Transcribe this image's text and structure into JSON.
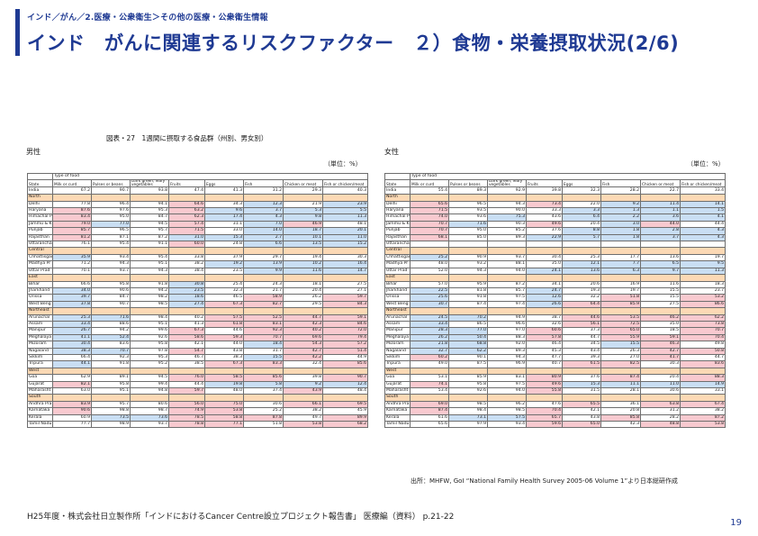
{
  "breadcrumb": "インド／がん／2.医療・公衆衛生＞その他の医療・公衆衛生情報",
  "title": "インド　がんに関連するリスクファクター　２）食物・栄養摂取状況(2/6)",
  "figure_title": "図表・27　1週間に摂取する食品群（州別、男女別）",
  "male_label": "男性",
  "female_label": "女性",
  "unit": "（単位：%）",
  "headers": {
    "type_of_food": "Type of food",
    "state": "State",
    "milk": "Milk or curd",
    "pulses": "Pulses or beans",
    "greens": "Dark green, leafy vegetables",
    "fruits": "Fruits",
    "eggs": "Eggs",
    "fish": "Fish",
    "chicken": "Chicken or meat",
    "fish_chicken": "Fish or chicken/meat"
  },
  "male_table": [
    {
      "r": "India",
      "v": [
        "67.2",
        "90.7",
        "93.8",
        "47.4",
        "41.3",
        "31.2",
        "29.3",
        "40.3"
      ],
      "top": true
    },
    {
      "r": "North",
      "region": true
    },
    {
      "r": "Delhi",
      "v": [
        "77.8",
        "96.4",
        "94.1",
        "64.6",
        "34.3",
        "12.3",
        "21.9",
        "23.9"
      ],
      "c": [
        "",
        "",
        "",
        "h",
        "",
        "l",
        "",
        "l"
      ]
    },
    {
      "r": "Haryana",
      "v": [
        "87.6",
        "97.6",
        "95.3",
        "63.2",
        "9.6",
        "3.7",
        "5.3",
        "5.5"
      ],
      "c": [
        "h",
        "",
        "",
        "h",
        "l",
        "l",
        "l",
        "l"
      ]
    },
    {
      "r": "Himachal P",
      "v": [
        "83.4",
        "95.0",
        "84.7",
        "62.3",
        "17.4",
        "4.3",
        "9.8",
        "11.3"
      ],
      "c": [
        "h",
        "",
        "",
        "h",
        "l",
        "l",
        "l",
        "l"
      ]
    },
    {
      "r": "Jammu & K",
      "v": [
        "79.0",
        "77.0",
        "94.5",
        "57.4",
        "31.1",
        "7.0",
        "46.9",
        "48.1"
      ],
      "c": [
        "h",
        "l",
        "",
        "h",
        "",
        "l",
        "h",
        ""
      ]
    },
    {
      "r": "Punjab",
      "v": [
        "85.7",
        "96.5",
        "95.7",
        "71.5",
        "33.0",
        "14.0",
        "18.7",
        "20.1"
      ],
      "c": [
        "h",
        "",
        "",
        "h",
        "",
        "l",
        "l",
        "l"
      ]
    },
    {
      "r": "Rajasthan",
      "v": [
        "81.2",
        "87.1",
        "87.2",
        "31.0",
        "15.3",
        "2.7",
        "10.1",
        "11.0"
      ],
      "c": [
        "h",
        "",
        "",
        "l",
        "l",
        "l",
        "l",
        "l"
      ]
    },
    {
      "r": "Uttaranchal",
      "v": [
        "76.1",
        "95.4",
        "91.1",
        "60.0",
        "24.8",
        "6.6",
        "13.5",
        "15.2"
      ],
      "c": [
        "",
        "",
        "",
        "h",
        "",
        "l",
        "l",
        "l"
      ]
    },
    {
      "r": "Central",
      "region": true
    },
    {
      "r": "Chhattisgarh",
      "v": [
        "35.9",
        "93.4",
        "95.4",
        "33.8",
        "37.9",
        "29.7",
        "19.4",
        "30.3"
      ],
      "c": [
        "l",
        "",
        "",
        "",
        "",
        "",
        "",
        ""
      ]
    },
    {
      "r": "Madhya Pr",
      "v": [
        "71.2",
        "94.3",
        "95.1",
        "38.2",
        "19.2",
        "13.9",
        "10.2",
        "16.4"
      ],
      "c": [
        "",
        "",
        "",
        "",
        "l",
        "l",
        "l",
        "l"
      ]
    },
    {
      "r": "Uttar Prad",
      "v": [
        "70.1",
        "93.7",
        "94.3",
        "38.4",
        "23.5",
        "9.9",
        "11.6",
        "14.7"
      ],
      "c": [
        "",
        "",
        "",
        "",
        "",
        "l",
        "l",
        "l"
      ]
    },
    {
      "r": "East",
      "region": true
    },
    {
      "r": "Bihar",
      "v": [
        "66.6",
        "95.8",
        "91.8",
        "30.8",
        "25.4",
        "24.3",
        "18.1",
        "27.5"
      ],
      "c": [
        "",
        "",
        "",
        "l",
        "",
        "",
        "",
        ""
      ]
    },
    {
      "r": "Jharkhand",
      "v": [
        "34.0",
        "90.6",
        "94.2",
        "23.5",
        "32.3",
        "21.7",
        "20.4",
        "27.1"
      ],
      "c": [
        "l",
        "",
        "",
        "l",
        "",
        "",
        "",
        ""
      ]
    },
    {
      "r": "Orissa",
      "v": [
        "39.7",
        "84.7",
        "98.2",
        "18.6",
        "46.5",
        "58.9",
        "26.2",
        "59.7"
      ],
      "c": [
        "l",
        "",
        "",
        "l",
        "",
        "h",
        "",
        "h"
      ]
    },
    {
      "r": "West Beng",
      "v": [
        "37.8",
        "90.7",
        "98.5",
        "27.4",
        "67.3",
        "82.7",
        "29.5",
        "84.3"
      ],
      "c": [
        "l",
        "",
        "",
        "l",
        "h",
        "h",
        "",
        "h"
      ]
    },
    {
      "r": "Northeast",
      "region": true
    },
    {
      "r": "Arunachal",
      "v": [
        "25.3",
        "71.6",
        "98.4",
        "40.2",
        "57.5",
        "52.5",
        "44.7",
        "59.1"
      ],
      "c": [
        "l",
        "l",
        "",
        "",
        "h",
        "h",
        "h",
        "h"
      ]
    },
    {
      "r": "Assam",
      "v": [
        "33.4",
        "88.6",
        "95.1",
        "41.3",
        "61.8",
        "83.1",
        "42.3",
        "84.6"
      ],
      "c": [
        "l",
        "",
        "",
        "",
        "h",
        "h",
        "h",
        "h"
      ]
    },
    {
      "r": "Manipur",
      "v": [
        "26.7",
        "94.2",
        "99.6",
        "67.3",
        "44.6",
        "92.3",
        "40.2",
        "72.0"
      ],
      "c": [
        "l",
        "",
        "",
        "h",
        "",
        "h",
        "h",
        "h"
      ]
    },
    {
      "r": "Meghalaya",
      "v": [
        "41.1",
        "52.4",
        "92.6",
        "58.6",
        "59.3",
        "70.7",
        "69.6",
        "79.4"
      ],
      "c": [
        "l",
        "l",
        "",
        "h",
        "h",
        "h",
        "h",
        "h"
      ]
    },
    {
      "r": "Mizoram",
      "v": [
        "30.4",
        "83.6",
        "95.8",
        "42.1",
        "44.0",
        "18.4",
        "54.3",
        "57.2"
      ],
      "c": [
        "l",
        "",
        "",
        "",
        "",
        "l",
        "h",
        "h"
      ]
    },
    {
      "r": "Nagaland",
      "v": [
        "38.3",
        "70.7",
        "97.8",
        "54.7",
        "43.8",
        "31.7",
        "42.7",
        "51.4"
      ],
      "c": [
        "l",
        "l",
        "",
        "h",
        "",
        "",
        "h",
        "h"
      ]
    },
    {
      "r": "Sikkim",
      "v": [
        "66.4",
        "92.3",
        "95.3",
        "46.7",
        "38.3",
        "15.5",
        "42.2",
        "44.9"
      ],
      "c": [
        "",
        "",
        "",
        "",
        "",
        "l",
        "h",
        ""
      ]
    },
    {
      "r": "Tripura",
      "v": [
        "44.1",
        "91.8",
        "95.2",
        "38.5",
        "67.3",
        "83.3",
        "32.4",
        "85.6"
      ],
      "c": [
        "l",
        "",
        "",
        "",
        "h",
        "h",
        "",
        "h"
      ]
    },
    {
      "r": "West",
      "region": true
    },
    {
      "r": "Goa",
      "v": [
        "62.9",
        "89.1",
        "94.5",
        "76.0",
        "58.5",
        "85.6",
        "39.8",
        "90.7"
      ],
      "c": [
        "",
        "",
        "",
        "h",
        "h",
        "h",
        "",
        "h"
      ]
    },
    {
      "r": "Gujarat",
      "v": [
        "82.1",
        "95.8",
        "99.4",
        "44.4",
        "19.8",
        "5.8",
        "9.2",
        "12.4"
      ],
      "c": [
        "h",
        "",
        "",
        "",
        "l",
        "l",
        "l",
        "l"
      ]
    },
    {
      "r": "Maharasht",
      "v": [
        "63.0",
        "95.1",
        "94.8",
        "59.7",
        "48.0",
        "37.4",
        "43.9",
        "48.4"
      ],
      "c": [
        "",
        "",
        "",
        "h",
        "",
        "",
        "h",
        ""
      ]
    },
    {
      "r": "South",
      "region": true
    },
    {
      "r": "Andhra Pra",
      "v": [
        "83.9",
        "95.7",
        "80.6",
        "56.0",
        "75.0",
        "30.6",
        "66.1",
        "69.5"
      ],
      "c": [
        "h",
        "",
        "",
        "h",
        "h",
        "",
        "h",
        "h"
      ]
    },
    {
      "r": "Karnataka",
      "v": [
        "90.6",
        "98.8",
        "98.7",
        "74.9",
        "53.8",
        "25.2",
        "38.2",
        "45.9"
      ],
      "c": [
        "h",
        "",
        "",
        "h",
        "h",
        "",
        "",
        ""
      ]
    },
    {
      "r": "Kerala",
      "v": [
        "60.9",
        "73.5",
        "73.6",
        "78.5",
        "58.8",
        "87.8",
        "49.7",
        "89.9"
      ],
      "c": [
        "",
        "l",
        "l",
        "h",
        "h",
        "h",
        "",
        "h"
      ]
    },
    {
      "r": "Tamil Nadu",
      "v": [
        "77.7",
        "98.9",
        "93.7",
        "78.8",
        "77.1",
        "51.8",
        "53.8",
        "68.2"
      ],
      "c": [
        "",
        "",
        "",
        "h",
        "h",
        "",
        "h",
        "h"
      ]
    }
  ],
  "female_table": [
    {
      "r": "India",
      "v": [
        "55.4",
        "89.3",
        "92.9",
        "39.8",
        "32.3",
        "28.2",
        "22.7",
        "33.4"
      ],
      "top": true
    },
    {
      "r": "North",
      "region": true
    },
    {
      "r": "Delhi",
      "v": [
        "65.6",
        "96.5",
        "94.3",
        "73.4",
        "22.0",
        "9.2",
        "11.4",
        "14.1"
      ],
      "c": [
        "h",
        "",
        "",
        "h",
        "",
        "l",
        "l",
        "l"
      ]
    },
    {
      "r": "Haryana",
      "v": [
        "71.5",
        "93.5",
        "90.0",
        "33.3",
        "3.3",
        "1.3",
        "1.1",
        "1.5"
      ],
      "c": [
        "h",
        "",
        "",
        "",
        "l",
        "l",
        "l",
        "l"
      ]
    },
    {
      "r": "Himachal P",
      "v": [
        "74.0",
        "93.6",
        "75.3",
        "43.6",
        "6.4",
        "2.2",
        "3.6",
        "4.1"
      ],
      "c": [
        "h",
        "",
        "l",
        "",
        "l",
        "l",
        "l",
        "l"
      ]
    },
    {
      "r": "Jammu & K",
      "v": [
        "70.7",
        "71.6",
        "90.3",
        "49.6",
        "20.4",
        "3.0",
        "44.0",
        "44.4"
      ],
      "c": [
        "h",
        "l",
        "",
        "h",
        "",
        "l",
        "h",
        ""
      ]
    },
    {
      "r": "Punjab",
      "v": [
        "70.7",
        "95.0",
        "85.2",
        "37.6",
        "8.8",
        "1.8",
        "2.8",
        "4.3"
      ],
      "c": [
        "h",
        "",
        "",
        "",
        "l",
        "l",
        "l",
        "l"
      ]
    },
    {
      "r": "Rajasthan",
      "v": [
        "68.1",
        "85.0",
        "89.3",
        "22.9",
        "5.7",
        "1.8",
        "3.7",
        "4.3"
      ],
      "c": [
        "h",
        "",
        "",
        "l",
        "l",
        "l",
        "l",
        "l"
      ]
    },
    {
      "r": "Uttaranchal",
      "v": [
        "",
        "",
        "",
        "",
        "",
        "",
        "",
        ""
      ]
    },
    {
      "r": "Central",
      "region": true
    },
    {
      "r": "Chhattisgarh",
      "v": [
        "25.2",
        "90.9",
        "93.7",
        "30.4",
        "25.3",
        "17.7",
        "13.6",
        "19.7"
      ],
      "c": [
        "l",
        "",
        "",
        "",
        "",
        "",
        "",
        ""
      ]
    },
    {
      "r": "Madhya Pr",
      "v": [
        "48.0",
        "93.2",
        "88.1",
        "35.0",
        "12.1",
        "7.7",
        "6.5",
        "9.5"
      ],
      "c": [
        "",
        "",
        "",
        "",
        "l",
        "l",
        "l",
        "l"
      ]
    },
    {
      "r": "Uttar Prad",
      "v": [
        "52.0",
        "94.3",
        "94.0",
        "24.1",
        "13.6",
        "6.3",
        "9.7",
        "11.3"
      ],
      "c": [
        "",
        "",
        "",
        "l",
        "l",
        "l",
        "l",
        "l"
      ]
    },
    {
      "r": "East",
      "region": true
    },
    {
      "r": "Bihar",
      "v": [
        "57.0",
        "95.9",
        "87.2",
        "34.1",
        "20.6",
        "16.9",
        "11.6",
        "18.3"
      ],
      "c": [
        "",
        "",
        "",
        "",
        "",
        "",
        "",
        ""
      ]
    },
    {
      "r": "Jharkhand",
      "v": [
        "22.5",
        "81.8",
        "85.7",
        "24.7",
        "19.3",
        "19.7",
        "15.5",
        "23.7"
      ],
      "c": [
        "l",
        "",
        "",
        "l",
        "",
        "",
        "",
        ""
      ]
    },
    {
      "r": "Orissa",
      "v": [
        "25.6",
        "91.8",
        "97.5",
        "12.6",
        "32.2",
        "51.8",
        "15.5",
        "53.2"
      ],
      "c": [
        "l",
        "",
        "",
        "l",
        "",
        "h",
        "",
        "h"
      ]
    },
    {
      "r": "West Beng",
      "v": [
        "30.7",
        "87.4",
        "97.4",
        "26.6",
        "64.4",
        "85.9",
        "27.5",
        "86.6"
      ],
      "c": [
        "l",
        "",
        "",
        "l",
        "h",
        "h",
        "",
        "h"
      ]
    },
    {
      "r": "Northeast",
      "region": true
    },
    {
      "r": "Arunachal",
      "v": [
        "24.5",
        "70.2",
        "94.9",
        "38.7",
        "44.6",
        "53.5",
        "46.2",
        "62.2"
      ],
      "c": [
        "l",
        "l",
        "",
        "",
        "h",
        "h",
        "h",
        "h"
      ]
    },
    {
      "r": "Assam",
      "v": [
        "33.4",
        "86.5",
        "96.6",
        "32.6",
        "56.1",
        "72.5",
        "35.0",
        "73.8"
      ],
      "c": [
        "l",
        "",
        "",
        "",
        "h",
        "h",
        "",
        "h"
      ]
    },
    {
      "r": "Manipur",
      "v": [
        "28.3",
        "77.0",
        "97.0",
        "60.6",
        "37.3",
        "65.0",
        "18.5",
        "70.7"
      ],
      "c": [
        "l",
        "l",
        "",
        "h",
        "",
        "h",
        "",
        "h"
      ]
    },
    {
      "r": "Meghalaya",
      "v": [
        "26.2",
        "50.4",
        "88.3",
        "57.8",
        "44.7",
        "55.9",
        "59.1",
        "70.4"
      ],
      "c": [
        "l",
        "l",
        "",
        "h",
        "",
        "h",
        "h",
        "h"
      ]
    },
    {
      "r": "Mizoram",
      "v": [
        "21.8",
        "68.8",
        "92.0",
        "46.4",
        "34.5",
        "15.5",
        "46.3",
        "49.8"
      ],
      "c": [
        "l",
        "l",
        "",
        "",
        "",
        "l",
        "h",
        ""
      ]
    },
    {
      "r": "Nagaland",
      "v": [
        "32.7",
        "62.2",
        "89.3",
        "45.3",
        "43.4",
        "26.3",
        "42.7",
        "50.8"
      ],
      "c": [
        "l",
        "l",
        "",
        "",
        "",
        "",
        "h",
        "h"
      ]
    },
    {
      "r": "Sikkim",
      "v": [
        "60.2",
        "90.1",
        "94.3",
        "47.7",
        "39.3",
        "27.0",
        "41.7",
        "44.7"
      ],
      "c": [
        "h",
        "",
        "",
        "",
        "",
        "",
        "h",
        ""
      ]
    },
    {
      "r": "Tripura",
      "v": [
        "49.0",
        "87.5",
        "96.9",
        "40.7",
        "61.5",
        "82.5",
        "30.3",
        "83.6"
      ],
      "c": [
        "",
        "",
        "",
        "",
        "h",
        "h",
        "",
        "h"
      ]
    },
    {
      "r": "West",
      "region": true
    },
    {
      "r": "Goa",
      "v": [
        "53.1",
        "85.9",
        "83.1",
        "80.9",
        "37.6",
        "87.4",
        "20.4",
        "88.3"
      ],
      "c": [
        "",
        "",
        "",
        "h",
        "",
        "h",
        "",
        "h"
      ]
    },
    {
      "r": "Gujarat",
      "v": [
        "74.1",
        "95.8",
        "97.5",
        "49.6",
        "15.3",
        "11.1",
        "11.0",
        "14.9"
      ],
      "c": [
        "h",
        "",
        "",
        "h",
        "l",
        "l",
        "l",
        "l"
      ]
    },
    {
      "r": "Maharasht",
      "v": [
        "53.4",
        "92.6",
        "94.0",
        "55.8",
        "31.5",
        "28.1",
        "30.6",
        "33.1"
      ],
      "c": [
        "",
        "",
        "",
        "h",
        "",
        "",
        "",
        ""
      ]
    },
    {
      "r": "South",
      "region": true
    },
    {
      "r": "Andhra Pra",
      "v": [
        "69.0",
        "98.5",
        "96.2",
        "47.6",
        "65.5",
        "36.1",
        "63.8",
        "67.4"
      ],
      "c": [
        "h",
        "",
        "",
        "",
        "h",
        "",
        "h",
        "h"
      ]
    },
    {
      "r": "Karnataka",
      "v": [
        "87.4",
        "98.4",
        "98.5",
        "70.4",
        "42.1",
        "20.8",
        "31.2",
        "38.2"
      ],
      "c": [
        "h",
        "",
        "",
        "h",
        "",
        "",
        "",
        ""
      ]
    },
    {
      "r": "Kerala",
      "v": [
        "61.6",
        "73.1",
        "57.5",
        "65.7",
        "43.8",
        "85.8",
        "28.2",
        "87.2"
      ],
      "c": [
        "",
        "l",
        "l",
        "h",
        "",
        "h",
        "",
        "h"
      ]
    },
    {
      "r": "Tamil Nadu",
      "v": [
        "65.6",
        "97.9",
        "93.4",
        "59.6",
        "65.0",
        "42.3",
        "48.8",
        "53.8"
      ],
      "c": [
        "",
        "",
        "",
        "h",
        "h",
        "",
        "h",
        "h"
      ]
    }
  ],
  "source": "出所：MHFW, GoI “National Family Health Survey 2005-06 Volume 1”より日本総研作成",
  "footer": "H25年度・株式会社日立製作所「インドにおけるCancer Centre設立プロジェクト報告書」 医療編（資料） p.21-22",
  "page_number": "19"
}
